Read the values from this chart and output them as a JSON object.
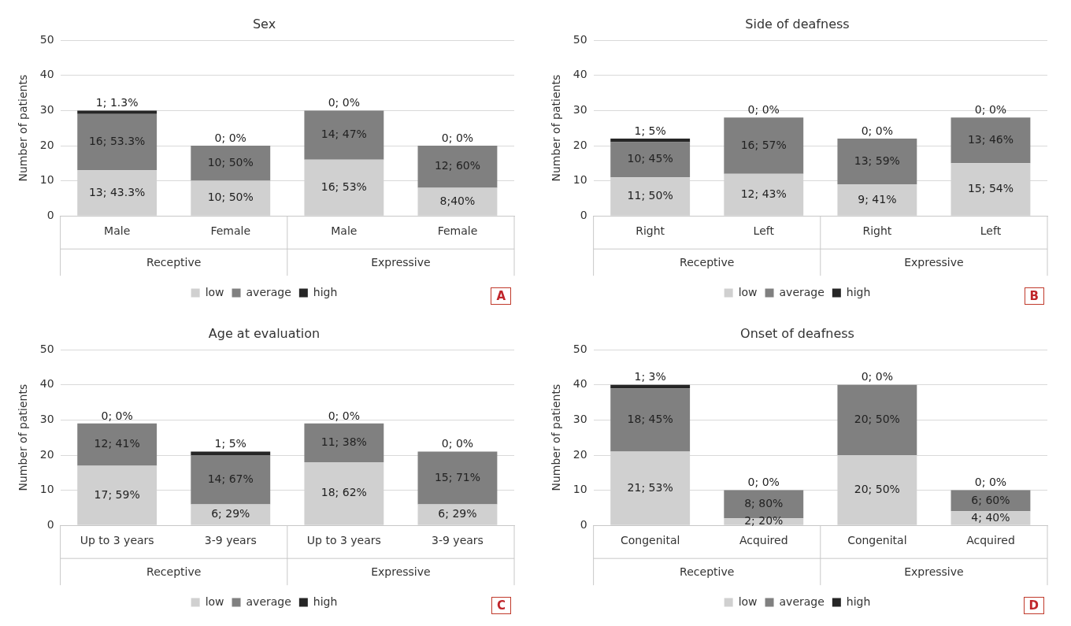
{
  "chart_data": [
    {
      "type": "bar",
      "title": "Sex",
      "ylabel": "Number of patients",
      "categories": [
        "Male",
        "Female",
        "Male",
        "Female"
      ],
      "stacked": true,
      "ylim": [
        0,
        50
      ],
      "yticks": [
        0,
        10,
        20,
        30,
        40,
        50
      ],
      "grid": "y",
      "legend": "bottom",
      "annotations": [
        "Receptive",
        "Expressive",
        "A"
      ],
      "series": [
        {
          "name": "low",
          "color": "#d0d0d0",
          "values": [
            13,
            10,
            16,
            8
          ],
          "value_labels": [
            "13; 43.3%",
            "10; 50%",
            "16; 53%",
            "8;40%"
          ]
        },
        {
          "name": "average",
          "color": "#808080",
          "values": [
            16,
            10,
            14,
            12
          ],
          "value_labels": [
            "16; 53.3%",
            "10; 50%",
            "14; 47%",
            "12; 60%"
          ]
        },
        {
          "name": "high",
          "color": "#262626",
          "values": [
            1,
            0,
            0,
            0
          ],
          "value_labels": [
            "1; 1.3%",
            "0; 0%",
            "0; 0%",
            "0; 0%"
          ]
        }
      ]
    },
    {
      "type": "bar",
      "title": "Side of deafness",
      "ylabel": "Number of patients",
      "categories": [
        "Right",
        "Left",
        "Right",
        "Left"
      ],
      "stacked": true,
      "ylim": [
        0,
        50
      ],
      "yticks": [
        0,
        10,
        20,
        30,
        40,
        50
      ],
      "grid": "y",
      "legend": "bottom",
      "annotations": [
        "Receptive",
        "Expressive",
        "B"
      ],
      "series": [
        {
          "name": "low",
          "color": "#d0d0d0",
          "values": [
            11,
            12,
            9,
            15
          ],
          "value_labels": [
            "11; 50%",
            "12; 43%",
            "9; 41%",
            "15; 54%"
          ]
        },
        {
          "name": "average",
          "color": "#808080",
          "values": [
            10,
            16,
            13,
            13
          ],
          "value_labels": [
            "10; 45%",
            "16; 57%",
            "13; 59%",
            "13; 46%"
          ]
        },
        {
          "name": "high",
          "color": "#262626",
          "values": [
            1,
            0,
            0,
            0
          ],
          "value_labels": [
            "1; 5%",
            "0; 0%",
            "0; 0%",
            "0; 0%"
          ]
        }
      ]
    },
    {
      "type": "bar",
      "title": "Age at evaluation",
      "ylabel": "Number of patients",
      "categories": [
        "Up to 3 years",
        "3-9 years",
        "Up to 3 years",
        "3-9 years"
      ],
      "stacked": true,
      "ylim": [
        0,
        50
      ],
      "yticks": [
        0,
        10,
        20,
        30,
        40,
        50
      ],
      "grid": "y",
      "legend": "bottom",
      "annotations": [
        "Receptive",
        "Expressive",
        "C"
      ],
      "series": [
        {
          "name": "low",
          "color": "#d0d0d0",
          "values": [
            17,
            6,
            18,
            6
          ],
          "value_labels": [
            "17; 59%",
            "6; 29%",
            "18; 62%",
            "6; 29%"
          ]
        },
        {
          "name": "average",
          "color": "#808080",
          "values": [
            12,
            14,
            11,
            15
          ],
          "value_labels": [
            "12; 41%",
            "14; 67%",
            "11; 38%",
            "15; 71%"
          ]
        },
        {
          "name": "high",
          "color": "#262626",
          "values": [
            0,
            1,
            0,
            0
          ],
          "value_labels": [
            "0; 0%",
            "1; 5%",
            "0; 0%",
            "0; 0%"
          ]
        }
      ]
    },
    {
      "type": "bar",
      "title": "Onset of deafness",
      "ylabel": "Number of patients",
      "categories": [
        "Congenital",
        "Acquired",
        "Congenital",
        "Acquired"
      ],
      "stacked": true,
      "ylim": [
        0,
        50
      ],
      "yticks": [
        0,
        10,
        20,
        30,
        40,
        50
      ],
      "grid": "y",
      "legend": "bottom",
      "annotations": [
        "Receptive",
        "Expressive",
        "D"
      ],
      "series": [
        {
          "name": "low",
          "color": "#d0d0d0",
          "values": [
            21,
            2,
            20,
            4
          ],
          "value_labels": [
            "21; 53%",
            "2; 20%",
            "20; 50%",
            "4; 40%"
          ]
        },
        {
          "name": "average",
          "color": "#808080",
          "values": [
            18,
            8,
            20,
            6
          ],
          "value_labels": [
            "18; 45%",
            "8; 80%",
            "20; 50%",
            "6; 60%"
          ]
        },
        {
          "name": "high",
          "color": "#262626",
          "values": [
            1,
            0,
            0,
            0
          ],
          "value_labels": [
            "1; 3%",
            "0; 0%",
            "0; 0%",
            "0; 0%"
          ]
        }
      ]
    }
  ]
}
